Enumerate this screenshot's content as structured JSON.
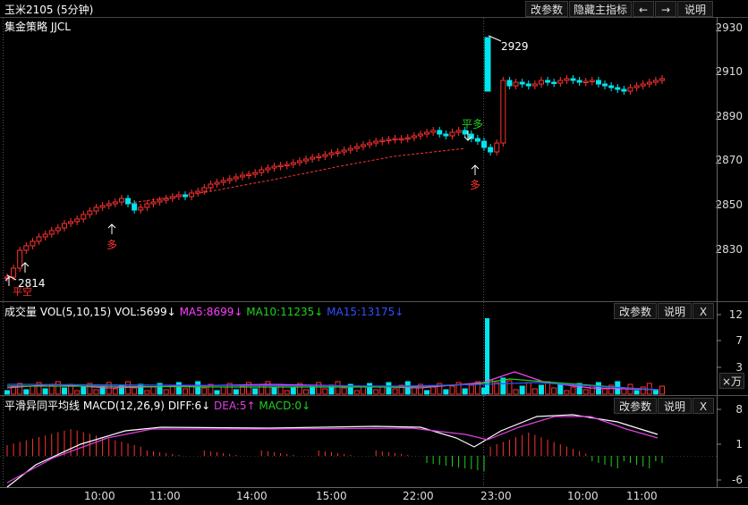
{
  "title_bar": {
    "symbol": "玉米2105 (5分钟)",
    "buttons": [
      "改参数",
      "隐藏主指标",
      "←",
      "→",
      "说明"
    ]
  },
  "main_panel": {
    "strategy_label": "集金策略 JJCL",
    "price_axis": [
      "2930",
      "2910",
      "2890",
      "2870",
      "2850",
      "2830"
    ],
    "high_label": "2929",
    "low_label": "2814",
    "signals": {
      "long1": "多",
      "long2": "多",
      "flat_long": "平多",
      "flat_short": "平空"
    }
  },
  "volume_panel": {
    "title": "成交量",
    "vol": "VOL(5,10,15)",
    "vol_value": "VOL:5699↓",
    "ma5": "MA5:8699↓",
    "ma10": "MA10:11235↓",
    "ma15": "MA15:13175↓",
    "buttons": [
      "改参数",
      "说明",
      "X"
    ],
    "axis": [
      "12",
      "7",
      "3"
    ],
    "unit": "×万"
  },
  "macd_panel": {
    "title": "平滑异同平均线",
    "macd": "MACD(12,26,9)",
    "diff": "DIFF:6↓",
    "dea": "DEA:5↑",
    "macd_value": "MACD:0↓",
    "buttons": [
      "改参数",
      "说明",
      "X"
    ],
    "axis": [
      "8",
      "1",
      "-6"
    ]
  },
  "time_axis": [
    "10:00",
    "11:00",
    "14:00",
    "15:00",
    "22:00",
    "23:00",
    "10:00",
    "11:00"
  ],
  "colors": {
    "up": "#ff3232",
    "down": "#00e5ee",
    "ma5": "#ff40ff",
    "ma10": "#20d020",
    "ma15": "#3050ff",
    "diff": "#ffffff",
    "dea": "#e040e0"
  }
}
